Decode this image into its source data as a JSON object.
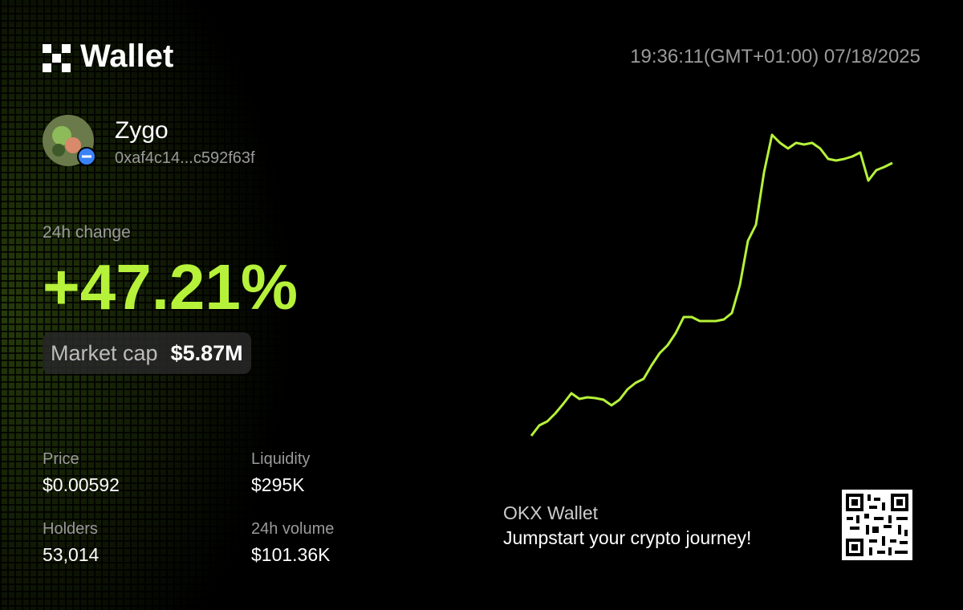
{
  "header": {
    "brand": "Wallet",
    "timestamp": "19:36:11(GMT+01:00) 07/18/2025"
  },
  "token": {
    "name": "Zygo",
    "address": "0xaf4c14...c592f63f"
  },
  "change": {
    "label": "24h change",
    "value": "+47.21%"
  },
  "market_cap": {
    "label": "Market cap",
    "value": "$5.87M"
  },
  "stats": [
    {
      "label": "Price",
      "value": "$0.00592"
    },
    {
      "label": "Liquidity",
      "value": "$295K"
    },
    {
      "label": "Holders",
      "value": "53,014"
    },
    {
      "label": "24h volume",
      "value": "$101.36K"
    }
  ],
  "sparkline": {
    "color": "#b6f23a",
    "values": [
      2,
      15,
      20,
      30,
      42,
      55,
      48,
      50,
      49,
      47,
      40,
      47,
      60,
      68,
      73,
      90,
      105,
      115,
      130,
      150,
      150,
      145,
      145,
      145,
      147,
      155,
      190,
      245,
      265,
      330,
      377,
      367,
      360,
      367,
      365,
      367,
      360,
      347,
      345,
      347,
      350,
      355,
      320,
      333,
      337,
      342
    ]
  },
  "footer": {
    "title": "OKX Wallet",
    "tagline": "Jumpstart your crypto journey!"
  }
}
